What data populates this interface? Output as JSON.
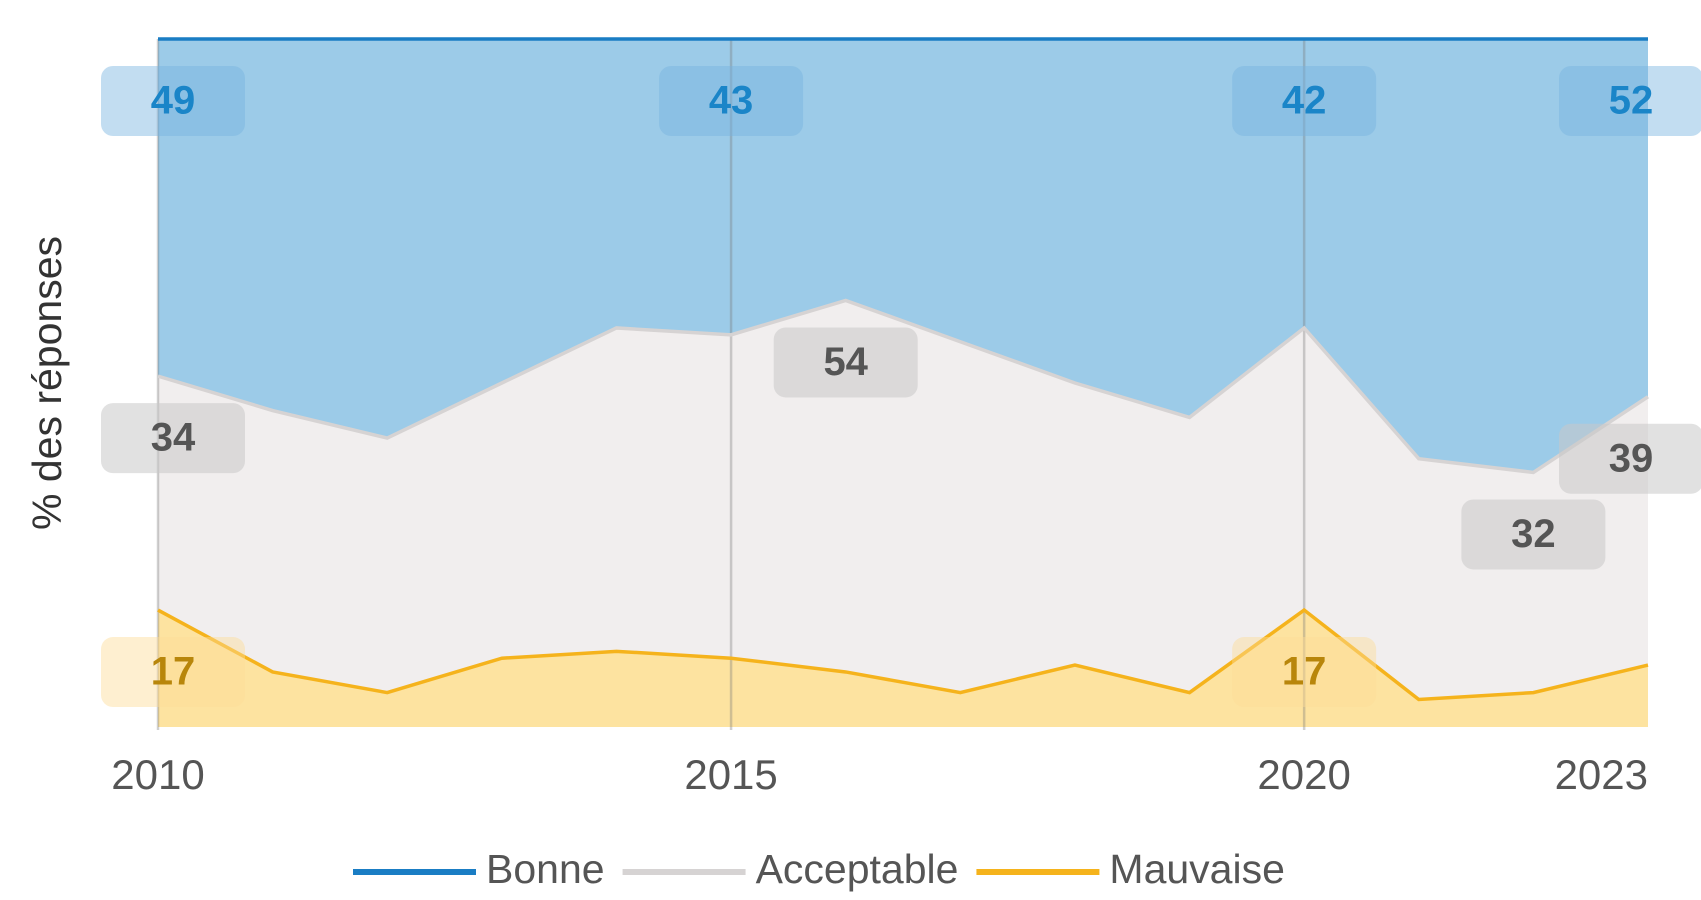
{
  "chart_data": {
    "type": "stacked_area",
    "y_label": "% des réponses",
    "x": [
      2010,
      2011,
      2012,
      2013,
      2014,
      2015,
      2016,
      2017,
      2018,
      2019,
      2020,
      2021,
      2022,
      2023
    ],
    "xlim": [
      2010,
      2023
    ],
    "xticks": [
      2010,
      2015,
      2020,
      2023
    ],
    "ylim": [
      0,
      100
    ],
    "series": [
      {
        "name": "Mauvaise",
        "color": "#f5b31c",
        "values": [
          17,
          8,
          5,
          10,
          11,
          10,
          8,
          5,
          9,
          5,
          17,
          4,
          5,
          9
        ]
      },
      {
        "name": "Acceptable",
        "color": "#d6d3d3",
        "values": [
          34,
          38,
          37,
          40,
          47,
          47,
          54,
          51,
          41,
          40,
          41,
          35,
          32,
          39
        ]
      },
      {
        "name": "Bonne",
        "color": "#1a7dc4",
        "values": [
          49,
          54,
          58,
          50,
          42,
          43,
          38,
          44,
          50,
          55,
          42,
          61,
          63,
          52
        ]
      }
    ]
  }
}
